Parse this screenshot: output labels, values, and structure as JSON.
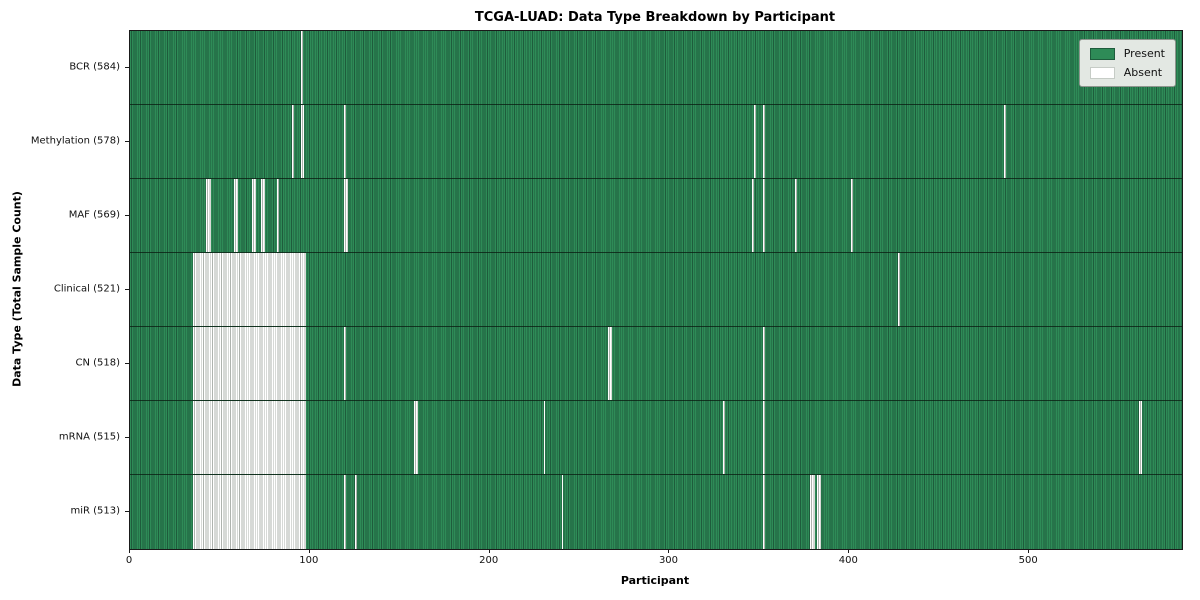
{
  "chart_data": {
    "type": "heatmap",
    "title": "TCGA-LUAD: Data Type Breakdown by Participant",
    "xlabel": "Participant",
    "ylabel": "Data Type (Total Sample Count)",
    "xlim": [
      0,
      585
    ],
    "x_ticks": [
      0,
      100,
      200,
      300,
      400,
      500
    ],
    "total_participants": 585,
    "grid": false,
    "legend_position": "upper right",
    "colors": {
      "present": "#2e8b57",
      "present_edge": "#1e5c3c",
      "absent": "#ffffff",
      "absent_edge": "#aeb3ae",
      "row_divider": "#14281a"
    },
    "legend": [
      {
        "label": "Present",
        "color": "#2e8b57"
      },
      {
        "label": "Absent",
        "color": "#ffffff"
      }
    ],
    "rows": [
      {
        "label": "BCR (584)",
        "data_type": "BCR",
        "present_count": 584,
        "absent_ranges": [
          [
            95,
            95
          ]
        ]
      },
      {
        "label": "Methylation (578)",
        "data_type": "Methylation",
        "present_count": 578,
        "absent_ranges": [
          [
            90,
            90
          ],
          [
            95,
            96
          ],
          [
            119,
            119
          ],
          [
            347,
            347
          ],
          [
            352,
            352
          ],
          [
            486,
            486
          ]
        ]
      },
      {
        "label": "MAF (569)",
        "data_type": "MAF",
        "present_count": 569,
        "absent_ranges": [
          [
            42,
            44
          ],
          [
            58,
            59
          ],
          [
            68,
            69
          ],
          [
            73,
            74
          ],
          [
            82,
            82
          ],
          [
            119,
            120
          ],
          [
            346,
            346
          ],
          [
            352,
            352
          ],
          [
            370,
            370
          ],
          [
            401,
            401
          ]
        ]
      },
      {
        "label": "Clinical (521)",
        "data_type": "Clinical",
        "present_count": 521,
        "absent_ranges": [
          [
            35,
            97
          ],
          [
            427,
            427
          ]
        ]
      },
      {
        "label": "CN (518)",
        "data_type": "CN",
        "present_count": 518,
        "absent_ranges": [
          [
            35,
            97
          ],
          [
            119,
            119
          ],
          [
            266,
            267
          ],
          [
            352,
            352
          ]
        ]
      },
      {
        "label": "mRNA (515)",
        "data_type": "mRNA",
        "present_count": 515,
        "absent_ranges": [
          [
            35,
            97
          ],
          [
            158,
            159
          ],
          [
            230,
            230
          ],
          [
            330,
            330
          ],
          [
            352,
            352
          ],
          [
            561,
            562
          ]
        ]
      },
      {
        "label": "miR (513)",
        "data_type": "miR",
        "present_count": 513,
        "absent_ranges": [
          [
            35,
            97
          ],
          [
            119,
            119
          ],
          [
            125,
            125
          ],
          [
            240,
            240
          ],
          [
            352,
            352
          ],
          [
            378,
            380
          ],
          [
            382,
            383
          ]
        ]
      }
    ]
  }
}
